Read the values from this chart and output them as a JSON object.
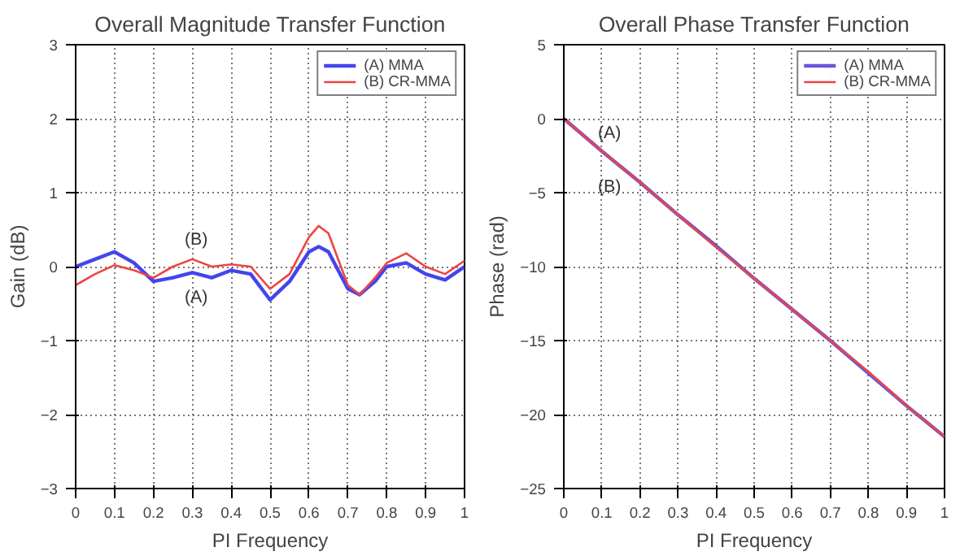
{
  "chart_data": [
    {
      "type": "line",
      "title": "Overall Magnitude Transfer Function",
      "xlabel": "PI Frequency",
      "ylabel": "Gain (dB)",
      "xlim": [
        0,
        1
      ],
      "ylim": [
        -3,
        3
      ],
      "xticks": [
        0,
        0.1,
        0.2,
        0.3,
        0.4,
        0.5,
        0.6,
        0.7,
        0.8,
        0.9,
        1
      ],
      "yticks": [
        -3,
        -2,
        -1,
        0,
        1,
        2,
        3
      ],
      "grid": true,
      "legend": "top right",
      "line_style": "solid",
      "x": [
        0,
        0.05,
        0.1,
        0.15,
        0.2,
        0.25,
        0.3,
        0.35,
        0.4,
        0.45,
        0.5,
        0.55,
        0.6,
        0.625,
        0.65,
        0.7,
        0.73,
        0.77,
        0.8,
        0.85,
        0.9,
        0.95,
        1
      ],
      "series": [
        {
          "name": "(A) MMA",
          "color": "#4444ee",
          "values": [
            0,
            0.1,
            0.2,
            0.05,
            -0.2,
            -0.15,
            -0.08,
            -0.15,
            -0.05,
            -0.1,
            -0.45,
            -0.2,
            0.2,
            0.27,
            0.2,
            -0.3,
            -0.38,
            -0.2,
            0,
            0.05,
            -0.1,
            -0.18,
            0
          ]
        },
        {
          "name": "(B) CR-MMA",
          "color": "#ee4444",
          "values": [
            -0.25,
            -0.1,
            0.02,
            -0.05,
            -0.15,
            0,
            0.1,
            0,
            0.03,
            0,
            -0.3,
            -0.1,
            0.4,
            0.55,
            0.45,
            -0.25,
            -0.38,
            -0.15,
            0.05,
            0.18,
            0,
            -0.1,
            0.08
          ]
        }
      ],
      "annotations": [
        "(B)",
        "(A)"
      ]
    },
    {
      "type": "line",
      "title": "Overall Phase Transfer Function",
      "xlabel": "PI Frequency",
      "ylabel": "Phase (rad)",
      "xlim": [
        0,
        1
      ],
      "ylim": [
        -25,
        5
      ],
      "xticks": [
        0,
        0.1,
        0.2,
        0.3,
        0.4,
        0.5,
        0.6,
        0.7,
        0.8,
        0.9,
        1
      ],
      "yticks": [
        -25,
        -20,
        -15,
        -10,
        -5,
        0,
        5
      ],
      "grid": true,
      "legend": "top right",
      "line_style": "solid",
      "x": [
        0,
        0.1,
        0.2,
        0.3,
        0.4,
        0.5,
        0.6,
        0.7,
        0.8,
        0.9,
        1
      ],
      "series": [
        {
          "name": "(A) MMA",
          "color": "#6655dd",
          "values": [
            0,
            -2.2,
            -4.3,
            -6.5,
            -8.6,
            -10.8,
            -12.9,
            -15.0,
            -17.2,
            -19.4,
            -21.5
          ]
        },
        {
          "name": "(B) CR-MMA",
          "color": "#ee4444",
          "values": [
            0,
            -2.2,
            -4.3,
            -6.5,
            -8.7,
            -10.8,
            -12.9,
            -15.0,
            -17.1,
            -19.4,
            -21.5
          ]
        }
      ],
      "annotations": [
        "(A)",
        "(B)"
      ]
    }
  ]
}
